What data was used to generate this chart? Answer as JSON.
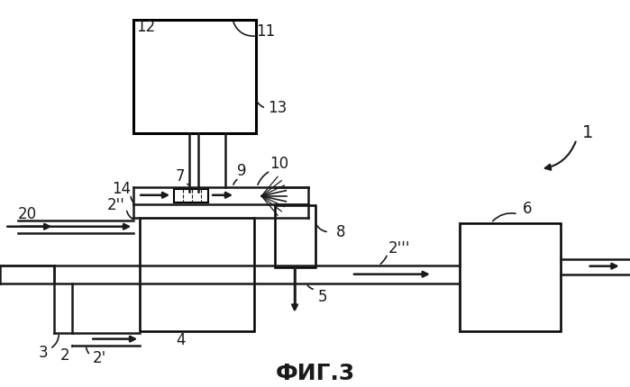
{
  "bg_color": "#ffffff",
  "line_color": "#1a1a1a",
  "title": "ФИГ.3",
  "title_fontsize": 18,
  "label_fontsize": 12
}
